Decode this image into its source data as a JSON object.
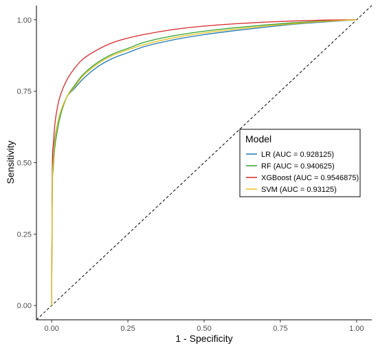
{
  "chart_data": {
    "type": "line",
    "title": "",
    "xlabel": "1 - Specificity",
    "ylabel": "Sensitivity",
    "xlim": [
      -0.05,
      1.05
    ],
    "ylim": [
      -0.05,
      1.05
    ],
    "x_ticks": [
      "0.00",
      "0.25",
      "0.50",
      "0.75",
      "1.00"
    ],
    "y_ticks": [
      "0.00",
      "0.25",
      "0.50",
      "0.75",
      "1.00"
    ],
    "grid": false,
    "legend": {
      "title": "Model",
      "placement": "right-middle"
    },
    "reference_line": {
      "style": "dashed",
      "color": "#000000",
      "from": [
        0,
        0
      ],
      "to": [
        1,
        1
      ]
    },
    "series": [
      {
        "name": "LR (AUC = 0.928125)",
        "color": "#1f77b4",
        "x": [
          0,
          0.002,
          0.005,
          0.01,
          0.02,
          0.03,
          0.05,
          0.075,
          0.1,
          0.15,
          0.2,
          0.25,
          0.3,
          0.4,
          0.5,
          0.6,
          0.7,
          0.8,
          0.9,
          1.0
        ],
        "y": [
          0,
          0.45,
          0.52,
          0.58,
          0.64,
          0.68,
          0.73,
          0.76,
          0.79,
          0.835,
          0.865,
          0.885,
          0.905,
          0.93,
          0.948,
          0.962,
          0.974,
          0.985,
          0.993,
          1.0
        ]
      },
      {
        "name": "RF (AUC = 0.940625)",
        "color": "#2ca02c",
        "x": [
          0,
          0.002,
          0.005,
          0.01,
          0.02,
          0.03,
          0.05,
          0.075,
          0.1,
          0.15,
          0.2,
          0.25,
          0.3,
          0.4,
          0.5,
          0.6,
          0.7,
          0.8,
          0.9,
          1.0
        ],
        "y": [
          0,
          0.4,
          0.48,
          0.55,
          0.62,
          0.67,
          0.73,
          0.77,
          0.805,
          0.85,
          0.88,
          0.9,
          0.92,
          0.944,
          0.96,
          0.972,
          0.982,
          0.99,
          0.996,
          1.0
        ]
      },
      {
        "name": "XGBoost (AUC = 0.9546875)",
        "color": "#d62728",
        "x": [
          0,
          0.002,
          0.005,
          0.01,
          0.02,
          0.03,
          0.05,
          0.075,
          0.1,
          0.15,
          0.2,
          0.25,
          0.3,
          0.4,
          0.5,
          0.6,
          0.7,
          0.8,
          0.9,
          1.0
        ],
        "y": [
          0,
          0.48,
          0.56,
          0.63,
          0.7,
          0.74,
          0.79,
          0.83,
          0.86,
          0.895,
          0.92,
          0.936,
          0.948,
          0.966,
          0.978,
          0.986,
          0.992,
          0.996,
          0.999,
          1.0
        ]
      },
      {
        "name": "SVM (AUC = 0.93125)",
        "color": "#e6c01e",
        "x": [
          0,
          0.002,
          0.005,
          0.01,
          0.02,
          0.03,
          0.05,
          0.075,
          0.1,
          0.15,
          0.2,
          0.25,
          0.3,
          0.4,
          0.5,
          0.6,
          0.7,
          0.8,
          0.9,
          1.0
        ],
        "y": [
          0,
          0.42,
          0.5,
          0.57,
          0.64,
          0.68,
          0.73,
          0.765,
          0.8,
          0.845,
          0.875,
          0.895,
          0.912,
          0.937,
          0.954,
          0.967,
          0.978,
          0.987,
          0.995,
          1.0
        ]
      }
    ]
  }
}
